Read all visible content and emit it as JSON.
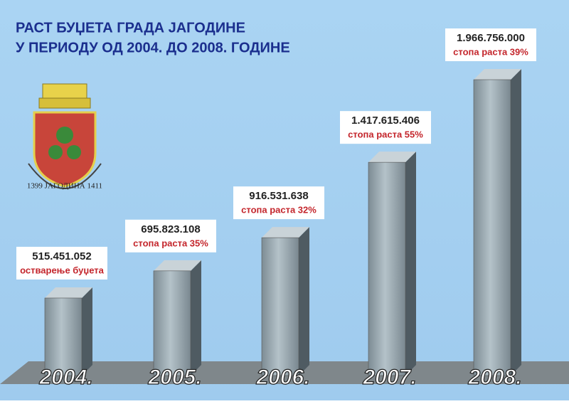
{
  "chart_data": {
    "type": "bar3d",
    "title": "РАСТ БУЏЕТА ГРАДА ЈАГОДИНЕ",
    "subtitle": "У ПЕРИОДУ ОД 2004. ДО 2008. ГОДИНЕ",
    "categories": [
      "2004.",
      "2005.",
      "2006.",
      "2007.",
      "2008."
    ],
    "values": [
      515451052,
      695823108,
      916531638,
      1417615406,
      1966756000
    ],
    "value_labels": [
      "515.451.052",
      "695.823.108",
      "916.531.638",
      "1.417.615.406",
      "1.966.756.000"
    ],
    "annotations": [
      "остварење буџета",
      "стопа раста 35%",
      "стопа раста 32%",
      "стопа раста 55%",
      "стопа раста 39%"
    ],
    "color": "#8e9ea6",
    "annotation_color": "#c4262c",
    "emblem_text": "1399 ЈАГОДИНА 1411"
  }
}
